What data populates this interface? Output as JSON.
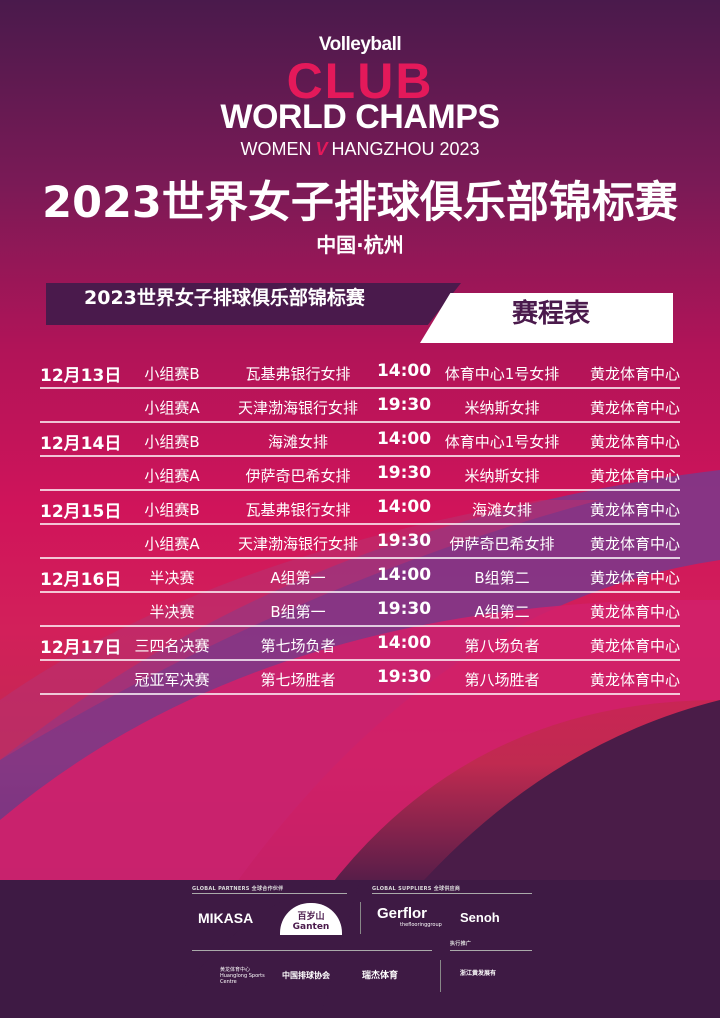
{
  "header": {
    "volleyball": "Volleyball",
    "club": "CLUB",
    "world_champs": "WORLD CHAMPS",
    "women": "WOMEN",
    "location_year": "HANGZHOU 2023",
    "title_cn": "2023世界女子排球俱乐部锦标赛",
    "city": "中国·杭州"
  },
  "banner": {
    "left": "2023世界女子排球俱乐部锦标赛",
    "right": "赛程表"
  },
  "schedule": [
    {
      "date": "12月13日",
      "stage": "小组赛B",
      "team1": "瓦基弗银行女排",
      "time": "14:00",
      "team2": "体育中心1号女排",
      "venue": "黄龙体育中心"
    },
    {
      "date": "",
      "stage": "小组赛A",
      "team1": "天津渤海银行女排",
      "time": "19:30",
      "team2": "米纳斯女排",
      "venue": "黄龙体育中心"
    },
    {
      "date": "12月14日",
      "stage": "小组赛B",
      "team1": "海滩女排",
      "time": "14:00",
      "team2": "体育中心1号女排",
      "venue": "黄龙体育中心"
    },
    {
      "date": "",
      "stage": "小组赛A",
      "team1": "伊萨奇巴希女排",
      "time": "19:30",
      "team2": "米纳斯女排",
      "venue": "黄龙体育中心"
    },
    {
      "date": "12月15日",
      "stage": "小组赛B",
      "team1": "瓦基弗银行女排",
      "time": "14:00",
      "team2": "海滩女排",
      "venue": "黄龙体育中心"
    },
    {
      "date": "",
      "stage": "小组赛A",
      "team1": "天津渤海银行女排",
      "time": "19:30",
      "team2": "伊萨奇巴希女排",
      "venue": "黄龙体育中心"
    },
    {
      "date": "12月16日",
      "stage": "半决赛",
      "team1": "A组第一",
      "time": "14:00",
      "team2": "B组第二",
      "venue": "黄龙体育中心"
    },
    {
      "date": "",
      "stage": "半决赛",
      "team1": "B组第一",
      "time": "19:30",
      "team2": "A组第二",
      "venue": "黄龙体育中心"
    },
    {
      "date": "12月17日",
      "stage": "三四名决赛",
      "team1": "第七场负者",
      "time": "14:00",
      "team2": "第八场负者",
      "venue": "黄龙体育中心"
    },
    {
      "date": "",
      "stage": "冠亚军决赛",
      "team1": "第七场胜者",
      "time": "19:30",
      "team2": "第八场胜者",
      "venue": "黄龙体育中心"
    }
  ],
  "sponsors": {
    "partners_label": "GLOBAL PARTNERS 全球合作伙伴",
    "suppliers_label": "GLOBAL SUPPLIERS 全球供应商",
    "promo_label": "执行推广",
    "partners": [
      "MIKASA",
      "百岁山 Ganten"
    ],
    "suppliers": [
      "Gerflor",
      "Senoh"
    ],
    "gerflor_sub": "theflooringgroup",
    "others": [
      "黄龙体育中心 Huanglong Sports Centre",
      "中国排球协会",
      "瑞杰体育"
    ],
    "promo": [
      "浙江黄发展有"
    ]
  },
  "colors": {
    "accent": "#e4195a",
    "dark": "#4a1a4c"
  }
}
